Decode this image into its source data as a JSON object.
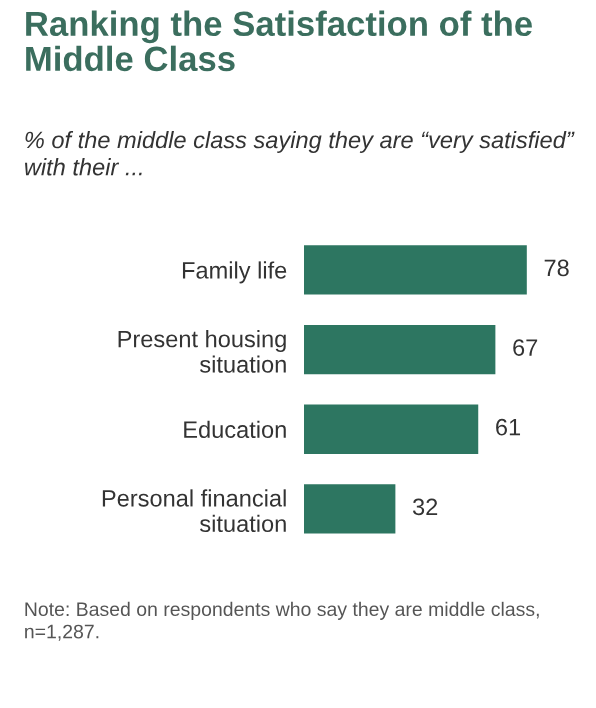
{
  "chart_data": {
    "type": "bar",
    "orientation": "horizontal",
    "relative": false,
    "title": "Ranking the Satisfaction of the\nMiddle Class",
    "subtitle": "% of the middle class saying they are “very satisfied”\nwith their ...",
    "categories": [
      "Family life",
      "Present housing\nsituation",
      "Education",
      "Personal financial\nsituation"
    ],
    "values": [
      78,
      67,
      61,
      32
    ],
    "color": "#2d7661",
    "data_labels": true,
    "annotations": [
      "Note: Based on respondents who say they are middle class,\nn=1,287."
    ]
  }
}
